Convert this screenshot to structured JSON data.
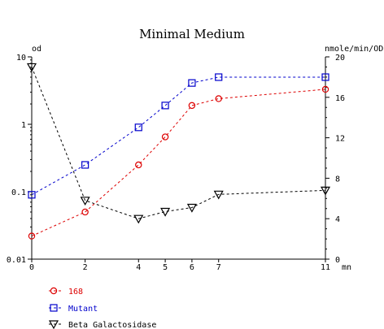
{
  "chart_data": {
    "type": "line",
    "title": "Minimal Medium",
    "x_unit": "mn",
    "left_axis_label": "od",
    "right_axis_label": "nmole/min/OD",
    "x_ticks": [
      0,
      2,
      4,
      5,
      6,
      7,
      11
    ],
    "x_range": [
      0,
      11
    ],
    "left_scale": "log",
    "left_range": [
      0.01,
      10
    ],
    "left_ticks": [
      {
        "value": 10,
        "label": "10"
      },
      {
        "value": 1,
        "label": "1"
      },
      {
        "value": 0.1,
        "label": "0.1"
      },
      {
        "value": 0.01,
        "label": "0.01"
      }
    ],
    "right_scale": "linear",
    "right_range": [
      0,
      20
    ],
    "right_ticks": [
      0,
      4,
      8,
      12,
      16,
      20
    ],
    "grid": false,
    "legend_position": "bottom-left",
    "series": [
      {
        "name": "168",
        "axis": "left",
        "marker": "circle",
        "color": "#dd0000",
        "x": [
          0,
          2,
          4,
          5,
          6,
          7,
          11
        ],
        "y": [
          0.022,
          0.05,
          0.25,
          0.65,
          1.9,
          2.4,
          3.3
        ]
      },
      {
        "name": "Mutant",
        "axis": "left",
        "marker": "square",
        "color": "#0000cc",
        "x": [
          0,
          2,
          4,
          5,
          6,
          7,
          11
        ],
        "y": [
          0.09,
          0.25,
          0.9,
          1.9,
          4.1,
          5.0,
          5.0
        ]
      },
      {
        "name": "Beta Galactosidase",
        "axis": "right",
        "marker": "triangle-down",
        "color": "#000000",
        "x": [
          0,
          2,
          4,
          5,
          6,
          7,
          11
        ],
        "y": [
          19.0,
          5.8,
          4.0,
          4.7,
          5.1,
          6.4,
          6.8
        ]
      }
    ]
  }
}
